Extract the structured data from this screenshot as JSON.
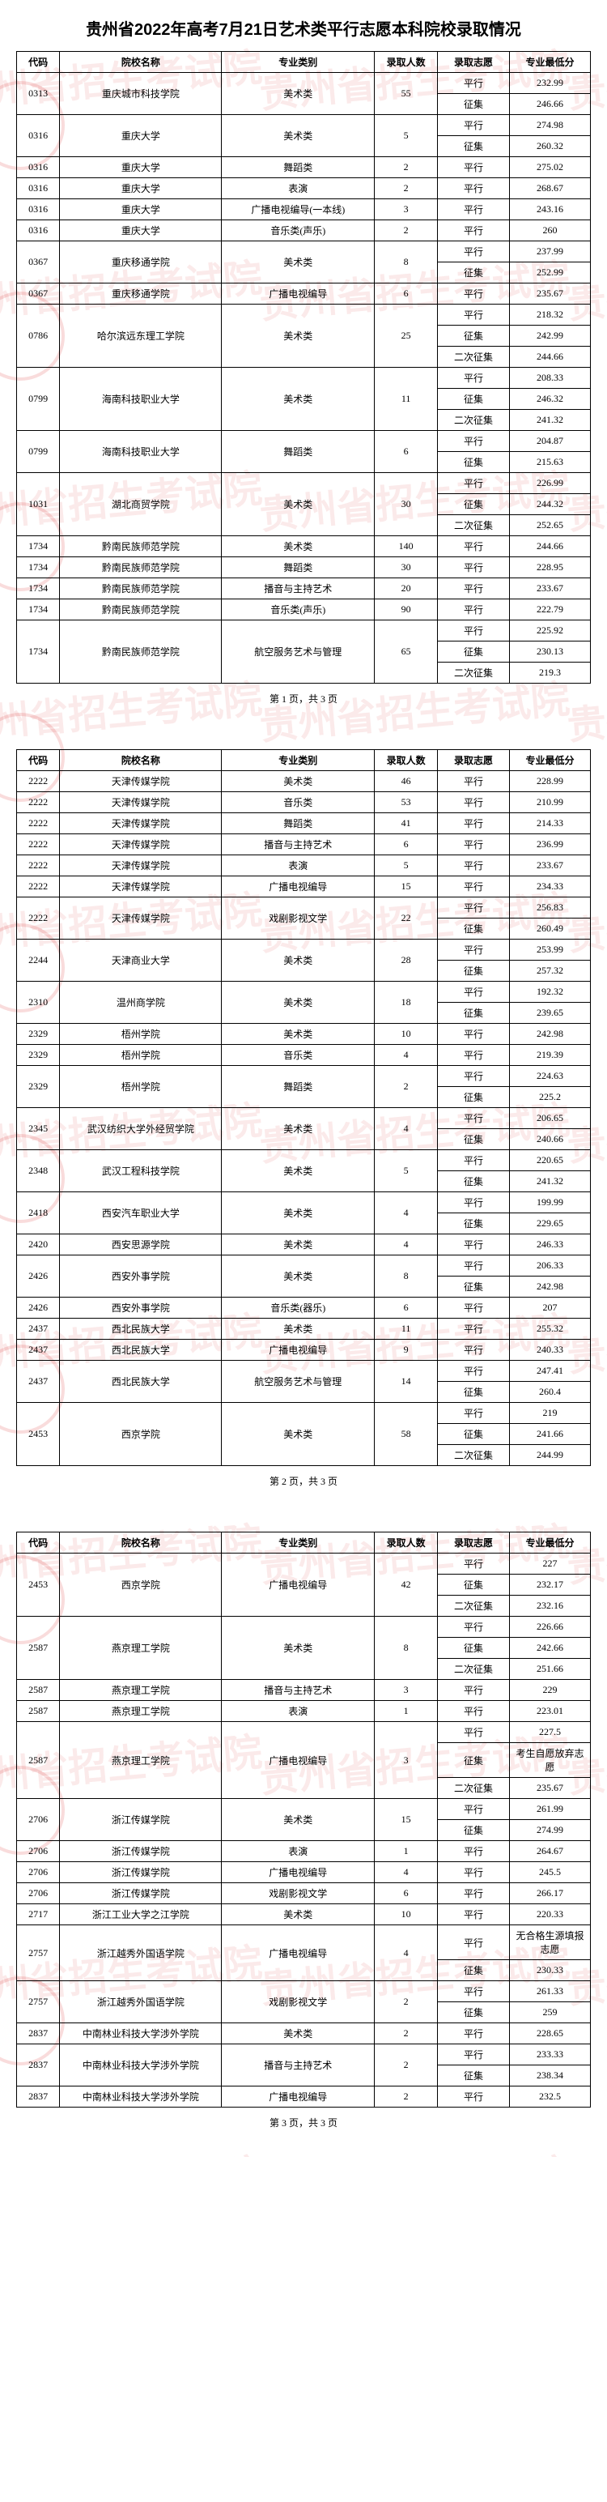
{
  "title": "贵州省2022年高考7月21日艺术类平行志愿本科院校录取情况",
  "watermark_text": "贵州省招生考试院",
  "headers": {
    "code": "代码",
    "name": "院校名称",
    "major": "专业类别",
    "count": "录取人数",
    "wish": "录取志愿",
    "score": "专业最低分"
  },
  "pager_label": {
    "prefix": "第 ",
    "mid": " 页，共 ",
    "suffix": " 页"
  },
  "total_pages": 3,
  "pages": [
    {
      "index": 1,
      "rows": [
        {
          "code": "0313",
          "name": "重庆城市科技学院",
          "major": "美术类",
          "count": "55",
          "splits": [
            {
              "wish": "平行",
              "score": "232.99"
            },
            {
              "wish": "征集",
              "score": "246.66"
            }
          ]
        },
        {
          "code": "0316",
          "name": "重庆大学",
          "major": "美术类",
          "count": "5",
          "splits": [
            {
              "wish": "平行",
              "score": "274.98"
            },
            {
              "wish": "征集",
              "score": "260.32"
            }
          ]
        },
        {
          "code": "0316",
          "name": "重庆大学",
          "major": "舞蹈类",
          "count": "2",
          "splits": [
            {
              "wish": "平行",
              "score": "275.02"
            }
          ]
        },
        {
          "code": "0316",
          "name": "重庆大学",
          "major": "表演",
          "count": "2",
          "splits": [
            {
              "wish": "平行",
              "score": "268.67"
            }
          ]
        },
        {
          "code": "0316",
          "name": "重庆大学",
          "major": "广播电视编导(一本线)",
          "count": "3",
          "splits": [
            {
              "wish": "平行",
              "score": "243.16"
            }
          ]
        },
        {
          "code": "0316",
          "name": "重庆大学",
          "major": "音乐类(声乐)",
          "count": "2",
          "splits": [
            {
              "wish": "平行",
              "score": "260"
            }
          ]
        },
        {
          "code": "0367",
          "name": "重庆移通学院",
          "major": "美术类",
          "count": "8",
          "splits": [
            {
              "wish": "平行",
              "score": "237.99"
            },
            {
              "wish": "征集",
              "score": "252.99"
            }
          ]
        },
        {
          "code": "0367",
          "name": "重庆移通学院",
          "major": "广播电视编导",
          "count": "6",
          "splits": [
            {
              "wish": "平行",
              "score": "235.67"
            }
          ]
        },
        {
          "code": "0786",
          "name": "哈尔滨远东理工学院",
          "major": "美术类",
          "count": "25",
          "splits": [
            {
              "wish": "平行",
              "score": "218.32"
            },
            {
              "wish": "征集",
              "score": "242.99"
            },
            {
              "wish": "二次征集",
              "score": "244.66"
            }
          ]
        },
        {
          "code": "0799",
          "name": "海南科技职业大学",
          "major": "美术类",
          "count": "11",
          "splits": [
            {
              "wish": "平行",
              "score": "208.33"
            },
            {
              "wish": "征集",
              "score": "246.32"
            },
            {
              "wish": "二次征集",
              "score": "241.32"
            }
          ]
        },
        {
          "code": "0799",
          "name": "海南科技职业大学",
          "major": "舞蹈类",
          "count": "6",
          "splits": [
            {
              "wish": "平行",
              "score": "204.87"
            },
            {
              "wish": "征集",
              "score": "215.63"
            }
          ]
        },
        {
          "code": "1031",
          "name": "湖北商贸学院",
          "major": "美术类",
          "count": "30",
          "splits": [
            {
              "wish": "平行",
              "score": "226.99"
            },
            {
              "wish": "征集",
              "score": "244.32"
            },
            {
              "wish": "二次征集",
              "score": "252.65"
            }
          ]
        },
        {
          "code": "1734",
          "name": "黔南民族师范学院",
          "major": "美术类",
          "count": "140",
          "splits": [
            {
              "wish": "平行",
              "score": "244.66"
            }
          ]
        },
        {
          "code": "1734",
          "name": "黔南民族师范学院",
          "major": "舞蹈类",
          "count": "30",
          "splits": [
            {
              "wish": "平行",
              "score": "228.95"
            }
          ]
        },
        {
          "code": "1734",
          "name": "黔南民族师范学院",
          "major": "播音与主持艺术",
          "count": "20",
          "splits": [
            {
              "wish": "平行",
              "score": "233.67"
            }
          ]
        },
        {
          "code": "1734",
          "name": "黔南民族师范学院",
          "major": "音乐类(声乐)",
          "count": "90",
          "splits": [
            {
              "wish": "平行",
              "score": "222.79"
            }
          ]
        },
        {
          "code": "1734",
          "name": "黔南民族师范学院",
          "major": "航空服务艺术与管理",
          "count": "65",
          "splits": [
            {
              "wish": "平行",
              "score": "225.92"
            },
            {
              "wish": "征集",
              "score": "230.13"
            },
            {
              "wish": "二次征集",
              "score": "219.3"
            }
          ]
        }
      ]
    },
    {
      "index": 2,
      "rows": [
        {
          "code": "2222",
          "name": "天津传媒学院",
          "major": "美术类",
          "count": "46",
          "splits": [
            {
              "wish": "平行",
              "score": "228.99"
            }
          ]
        },
        {
          "code": "2222",
          "name": "天津传媒学院",
          "major": "音乐类",
          "count": "53",
          "splits": [
            {
              "wish": "平行",
              "score": "210.99"
            }
          ]
        },
        {
          "code": "2222",
          "name": "天津传媒学院",
          "major": "舞蹈类",
          "count": "41",
          "splits": [
            {
              "wish": "平行",
              "score": "214.33"
            }
          ]
        },
        {
          "code": "2222",
          "name": "天津传媒学院",
          "major": "播音与主持艺术",
          "count": "6",
          "splits": [
            {
              "wish": "平行",
              "score": "236.99"
            }
          ]
        },
        {
          "code": "2222",
          "name": "天津传媒学院",
          "major": "表演",
          "count": "5",
          "splits": [
            {
              "wish": "平行",
              "score": "233.67"
            }
          ]
        },
        {
          "code": "2222",
          "name": "天津传媒学院",
          "major": "广播电视编导",
          "count": "15",
          "splits": [
            {
              "wish": "平行",
              "score": "234.33"
            }
          ]
        },
        {
          "code": "2222",
          "name": "天津传媒学院",
          "major": "戏剧影视文学",
          "count": "22",
          "splits": [
            {
              "wish": "平行",
              "score": "256.83"
            },
            {
              "wish": "征集",
              "score": "260.49"
            }
          ]
        },
        {
          "code": "2244",
          "name": "天津商业大学",
          "major": "美术类",
          "count": "28",
          "splits": [
            {
              "wish": "平行",
              "score": "253.99"
            },
            {
              "wish": "征集",
              "score": "257.32"
            }
          ]
        },
        {
          "code": "2310",
          "name": "温州商学院",
          "major": "美术类",
          "count": "18",
          "splits": [
            {
              "wish": "平行",
              "score": "192.32"
            },
            {
              "wish": "征集",
              "score": "239.65"
            }
          ]
        },
        {
          "code": "2329",
          "name": "梧州学院",
          "major": "美术类",
          "count": "10",
          "splits": [
            {
              "wish": "平行",
              "score": "242.98"
            }
          ]
        },
        {
          "code": "2329",
          "name": "梧州学院",
          "major": "音乐类",
          "count": "4",
          "splits": [
            {
              "wish": "平行",
              "score": "219.39"
            }
          ]
        },
        {
          "code": "2329",
          "name": "梧州学院",
          "major": "舞蹈类",
          "count": "2",
          "splits": [
            {
              "wish": "平行",
              "score": "224.63"
            },
            {
              "wish": "征集",
              "score": "225.2"
            }
          ]
        },
        {
          "code": "2345",
          "name": "武汉纺织大学外经贸学院",
          "major": "美术类",
          "count": "4",
          "splits": [
            {
              "wish": "平行",
              "score": "206.65"
            },
            {
              "wish": "征集",
              "score": "240.66"
            }
          ]
        },
        {
          "code": "2348",
          "name": "武汉工程科技学院",
          "major": "美术类",
          "count": "5",
          "splits": [
            {
              "wish": "平行",
              "score": "220.65"
            },
            {
              "wish": "征集",
              "score": "241.32"
            }
          ]
        },
        {
          "code": "2418",
          "name": "西安汽车职业大学",
          "major": "美术类",
          "count": "4",
          "splits": [
            {
              "wish": "平行",
              "score": "199.99"
            },
            {
              "wish": "征集",
              "score": "229.65"
            }
          ]
        },
        {
          "code": "2420",
          "name": "西安思源学院",
          "major": "美术类",
          "count": "4",
          "splits": [
            {
              "wish": "平行",
              "score": "246.33"
            }
          ]
        },
        {
          "code": "2426",
          "name": "西安外事学院",
          "major": "美术类",
          "count": "8",
          "splits": [
            {
              "wish": "平行",
              "score": "206.33"
            },
            {
              "wish": "征集",
              "score": "242.98"
            }
          ]
        },
        {
          "code": "2426",
          "name": "西安外事学院",
          "major": "音乐类(器乐)",
          "count": "6",
          "splits": [
            {
              "wish": "平行",
              "score": "207"
            }
          ]
        },
        {
          "code": "2437",
          "name": "西北民族大学",
          "major": "美术类",
          "count": "11",
          "splits": [
            {
              "wish": "平行",
              "score": "255.32"
            }
          ]
        },
        {
          "code": "2437",
          "name": "西北民族大学",
          "major": "广播电视编导",
          "count": "9",
          "splits": [
            {
              "wish": "平行",
              "score": "240.33"
            }
          ]
        },
        {
          "code": "2437",
          "name": "西北民族大学",
          "major": "航空服务艺术与管理",
          "count": "14",
          "splits": [
            {
              "wish": "平行",
              "score": "247.41"
            },
            {
              "wish": "征集",
              "score": "260.4"
            }
          ]
        },
        {
          "code": "2453",
          "name": "西京学院",
          "major": "美术类",
          "count": "58",
          "splits": [
            {
              "wish": "平行",
              "score": "219"
            },
            {
              "wish": "征集",
              "score": "241.66"
            },
            {
              "wish": "二次征集",
              "score": "244.99"
            }
          ]
        }
      ]
    },
    {
      "index": 3,
      "rows": [
        {
          "code": "2453",
          "name": "西京学院",
          "major": "广播电视编导",
          "count": "42",
          "splits": [
            {
              "wish": "平行",
              "score": "227"
            },
            {
              "wish": "征集",
              "score": "232.17"
            },
            {
              "wish": "二次征集",
              "score": "232.16"
            }
          ]
        },
        {
          "code": "2587",
          "name": "燕京理工学院",
          "major": "美术类",
          "count": "8",
          "splits": [
            {
              "wish": "平行",
              "score": "226.66"
            },
            {
              "wish": "征集",
              "score": "242.66"
            },
            {
              "wish": "二次征集",
              "score": "251.66"
            }
          ]
        },
        {
          "code": "2587",
          "name": "燕京理工学院",
          "major": "播音与主持艺术",
          "count": "3",
          "splits": [
            {
              "wish": "平行",
              "score": "229"
            }
          ]
        },
        {
          "code": "2587",
          "name": "燕京理工学院",
          "major": "表演",
          "count": "1",
          "splits": [
            {
              "wish": "平行",
              "score": "223.01"
            }
          ]
        },
        {
          "code": "2587",
          "name": "燕京理工学院",
          "major": "广播电视编导",
          "count": "3",
          "splits": [
            {
              "wish": "平行",
              "score": "227.5"
            },
            {
              "wish": "征集",
              "score": "考生自愿放弃志愿"
            },
            {
              "wish": "二次征集",
              "score": "235.67"
            }
          ]
        },
        {
          "code": "2706",
          "name": "浙江传媒学院",
          "major": "美术类",
          "count": "15",
          "splits": [
            {
              "wish": "平行",
              "score": "261.99"
            },
            {
              "wish": "征集",
              "score": "274.99"
            }
          ]
        },
        {
          "code": "2706",
          "name": "浙江传媒学院",
          "major": "表演",
          "count": "1",
          "splits": [
            {
              "wish": "平行",
              "score": "264.67"
            }
          ]
        },
        {
          "code": "2706",
          "name": "浙江传媒学院",
          "major": "广播电视编导",
          "count": "4",
          "splits": [
            {
              "wish": "平行",
              "score": "245.5"
            }
          ]
        },
        {
          "code": "2706",
          "name": "浙江传媒学院",
          "major": "戏剧影视文学",
          "count": "6",
          "splits": [
            {
              "wish": "平行",
              "score": "266.17"
            }
          ]
        },
        {
          "code": "2717",
          "name": "浙江工业大学之江学院",
          "major": "美术类",
          "count": "10",
          "splits": [
            {
              "wish": "平行",
              "score": "220.33"
            }
          ]
        },
        {
          "code": "2757",
          "name": "浙江越秀外国语学院",
          "major": "广播电视编导",
          "count": "4",
          "splits": [
            {
              "wish": "平行",
              "score": "无合格生源填报志愿"
            },
            {
              "wish": "征集",
              "score": "230.33"
            }
          ]
        },
        {
          "code": "2757",
          "name": "浙江越秀外国语学院",
          "major": "戏剧影视文学",
          "count": "2",
          "splits": [
            {
              "wish": "平行",
              "score": "261.33"
            },
            {
              "wish": "征集",
              "score": "259"
            }
          ]
        },
        {
          "code": "2837",
          "name": "中南林业科技大学涉外学院",
          "major": "美术类",
          "count": "2",
          "splits": [
            {
              "wish": "平行",
              "score": "228.65"
            }
          ]
        },
        {
          "code": "2837",
          "name": "中南林业科技大学涉外学院",
          "major": "播音与主持艺术",
          "count": "2",
          "splits": [
            {
              "wish": "平行",
              "score": "233.33"
            },
            {
              "wish": "征集",
              "score": "238.34"
            }
          ]
        },
        {
          "code": "2837",
          "name": "中南林业科技大学涉外学院",
          "major": "广播电视编导",
          "count": "2",
          "splits": [
            {
              "wish": "平行",
              "score": "232.5"
            }
          ]
        }
      ]
    }
  ]
}
